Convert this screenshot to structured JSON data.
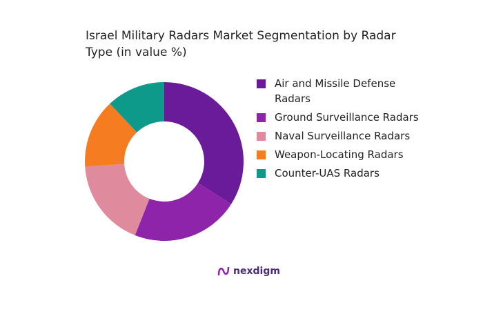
{
  "chart_data": {
    "type": "donut",
    "title": "Israel Military Radars Market Segmentation by Radar Type (in value %)",
    "categories": [
      "Air and Missile Defense Radars",
      "Ground Surveillance Radars",
      "Naval Surveillance Radars",
      "Weapon-Locating Radars",
      "Counter-UAS Radars"
    ],
    "values": [
      34,
      22,
      18,
      14,
      12
    ],
    "colors": [
      "#6a1b9a",
      "#8e24aa",
      "#e08a9e",
      "#f57c20",
      "#0e9a8a"
    ],
    "legend": "right"
  },
  "brand": "nexdigm"
}
